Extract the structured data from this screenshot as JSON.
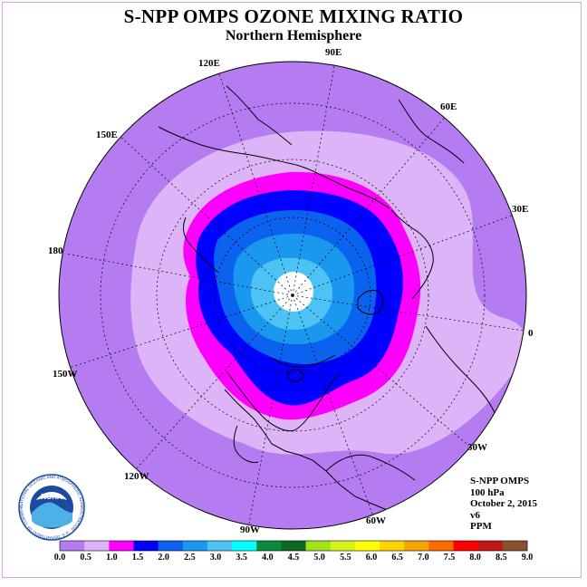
{
  "title": "S-NPP OMPS OZONE MIXING RATIO",
  "subtitle": "Northern Hemisphere",
  "longitude_labels": [
    "90E",
    "60E",
    "30E",
    "0",
    "30W",
    "60W",
    "90W",
    "120W",
    "150W",
    "180",
    "150E",
    "120E"
  ],
  "info": {
    "instrument": "S-NPP OMPS",
    "level": "100 hPa",
    "date": "October 2, 2015",
    "version": "v6",
    "units": "PPM"
  },
  "colorbar": {
    "ticks": [
      "0.0",
      "0.5",
      "1.0",
      "1.5",
      "2.0",
      "2.5",
      "3.0",
      "3.5",
      "4.0",
      "4.5",
      "5.0",
      "5.5",
      "6.0",
      "6.5",
      "7.0",
      "7.5",
      "8.0",
      "8.5",
      "9.0"
    ],
    "colors": [
      "#b57cf2",
      "#ddb4f8",
      "#ff00ff",
      "#0000ff",
      "#0a62ee",
      "#1a98f0",
      "#4dc3f5",
      "#00ffff",
      "#0a8a3a",
      "#0c6a20",
      "#a2e21a",
      "#d6f21a",
      "#ffff00",
      "#ffd200",
      "#f7a400",
      "#ff6a00",
      "#ff0000",
      "#c01818",
      "#8a5030"
    ]
  },
  "map_colors": {
    "background": "#b57cf2",
    "band_1": "#ddb4f8",
    "band_2": "#ff00ff",
    "band_3": "#0000ff",
    "band_4": "#0a62ee",
    "band_5": "#1a98f0",
    "band_6": "#4dc3f5",
    "pole_hole": "#ffffff"
  },
  "logo": {
    "name": "NOAA",
    "ring_text": "NATIONAL OCEANIC AND ATMOSPHERIC ADMINISTRATION · U.S. DEPARTMENT OF COMMERCE"
  }
}
